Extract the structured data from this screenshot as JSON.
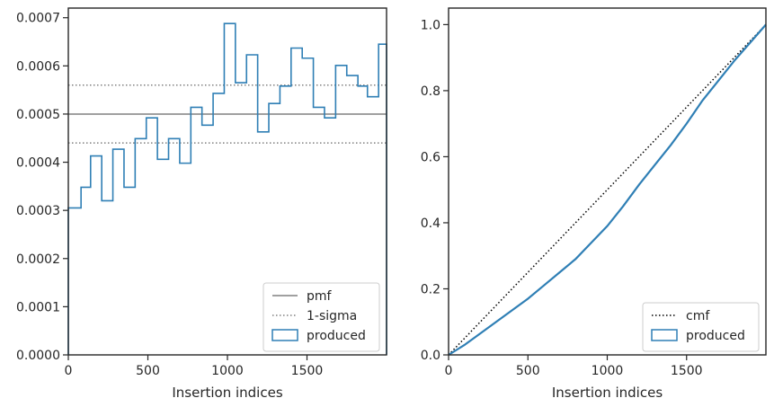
{
  "chart_data": [
    {
      "type": "histogram",
      "xlabel": "Insertion indices",
      "ylabel": "",
      "xlim": [
        0,
        2000
      ],
      "ylim": [
        0,
        0.00072
      ],
      "xticks": [
        0,
        500,
        1000,
        1500
      ],
      "xtick_labels": [
        "0",
        "500",
        "1000",
        "1500"
      ],
      "yticks": [
        0,
        0.0001,
        0.0002,
        0.0003,
        0.0004,
        0.0005,
        0.0006,
        0.0007
      ],
      "ytick_labels": [
        "0.0000",
        "0.0001",
        "0.0002",
        "0.0003",
        "0.0004",
        "0.0005",
        "0.0006",
        "0.0007"
      ],
      "grid": false,
      "legend_position": "bottom-right",
      "reference_lines": [
        {
          "name": "pmf",
          "y": 0.0005,
          "style": "solid",
          "color": "#808080"
        },
        {
          "name": "1-sigma",
          "y": 0.00044,
          "style": "dotted",
          "color": "#808080"
        },
        {
          "name": "1-sigma",
          "y": 0.00056,
          "style": "dotted",
          "color": "#808080"
        }
      ],
      "series": [
        {
          "name": "produced",
          "color": "#2f7fb5",
          "bin_edges": [
            0,
            80,
            140,
            210,
            280,
            350,
            420,
            490,
            560,
            630,
            700,
            770,
            840,
            910,
            980,
            1050,
            1120,
            1190,
            1260,
            1330,
            1400,
            1470,
            1540,
            1610,
            1680,
            1750,
            1820,
            1880,
            1950,
            2000
          ],
          "values": [
            0.000305,
            0.000348,
            0.000413,
            0.00032,
            0.000427,
            0.000348,
            0.000449,
            0.000492,
            0.000406,
            0.000449,
            0.000398,
            0.000514,
            0.000477,
            0.000543,
            0.000688,
            0.000565,
            0.000623,
            0.000463,
            0.000522,
            0.000558,
            0.000637,
            0.000616,
            0.000514,
            0.000492,
            0.000601,
            0.00058,
            0.000558,
            0.000536,
            0.000645
          ]
        }
      ],
      "legend": [
        "pmf",
        "1-sigma",
        "produced"
      ]
    },
    {
      "type": "line",
      "xlabel": "Insertion indices",
      "ylabel": "",
      "xlim": [
        0,
        2000
      ],
      "ylim": [
        0,
        1.05
      ],
      "xticks": [
        0,
        500,
        1000,
        1500
      ],
      "xtick_labels": [
        "0",
        "500",
        "1000",
        "1500"
      ],
      "yticks": [
        0,
        0.2,
        0.4,
        0.6,
        0.8,
        1.0
      ],
      "ytick_labels": [
        "0.0",
        "0.2",
        "0.4",
        "0.6",
        "0.8",
        "1.0"
      ],
      "grid": false,
      "legend_position": "bottom-right",
      "series": [
        {
          "name": "cmf",
          "style": "dotted",
          "color": "#000000",
          "x": [
            0,
            2000
          ],
          "y": [
            0,
            1.0
          ]
        },
        {
          "name": "produced",
          "style": "solid",
          "color": "#2f7fb5",
          "x": [
            0,
            100,
            200,
            300,
            400,
            500,
            600,
            700,
            800,
            900,
            1000,
            1100,
            1200,
            1300,
            1400,
            1500,
            1600,
            1700,
            1800,
            1900,
            2000
          ],
          "y": [
            0,
            0.03,
            0.065,
            0.1,
            0.135,
            0.17,
            0.21,
            0.25,
            0.29,
            0.34,
            0.39,
            0.45,
            0.515,
            0.575,
            0.635,
            0.7,
            0.77,
            0.83,
            0.89,
            0.945,
            1.0
          ]
        }
      ],
      "legend": [
        "cmf",
        "produced"
      ]
    }
  ]
}
